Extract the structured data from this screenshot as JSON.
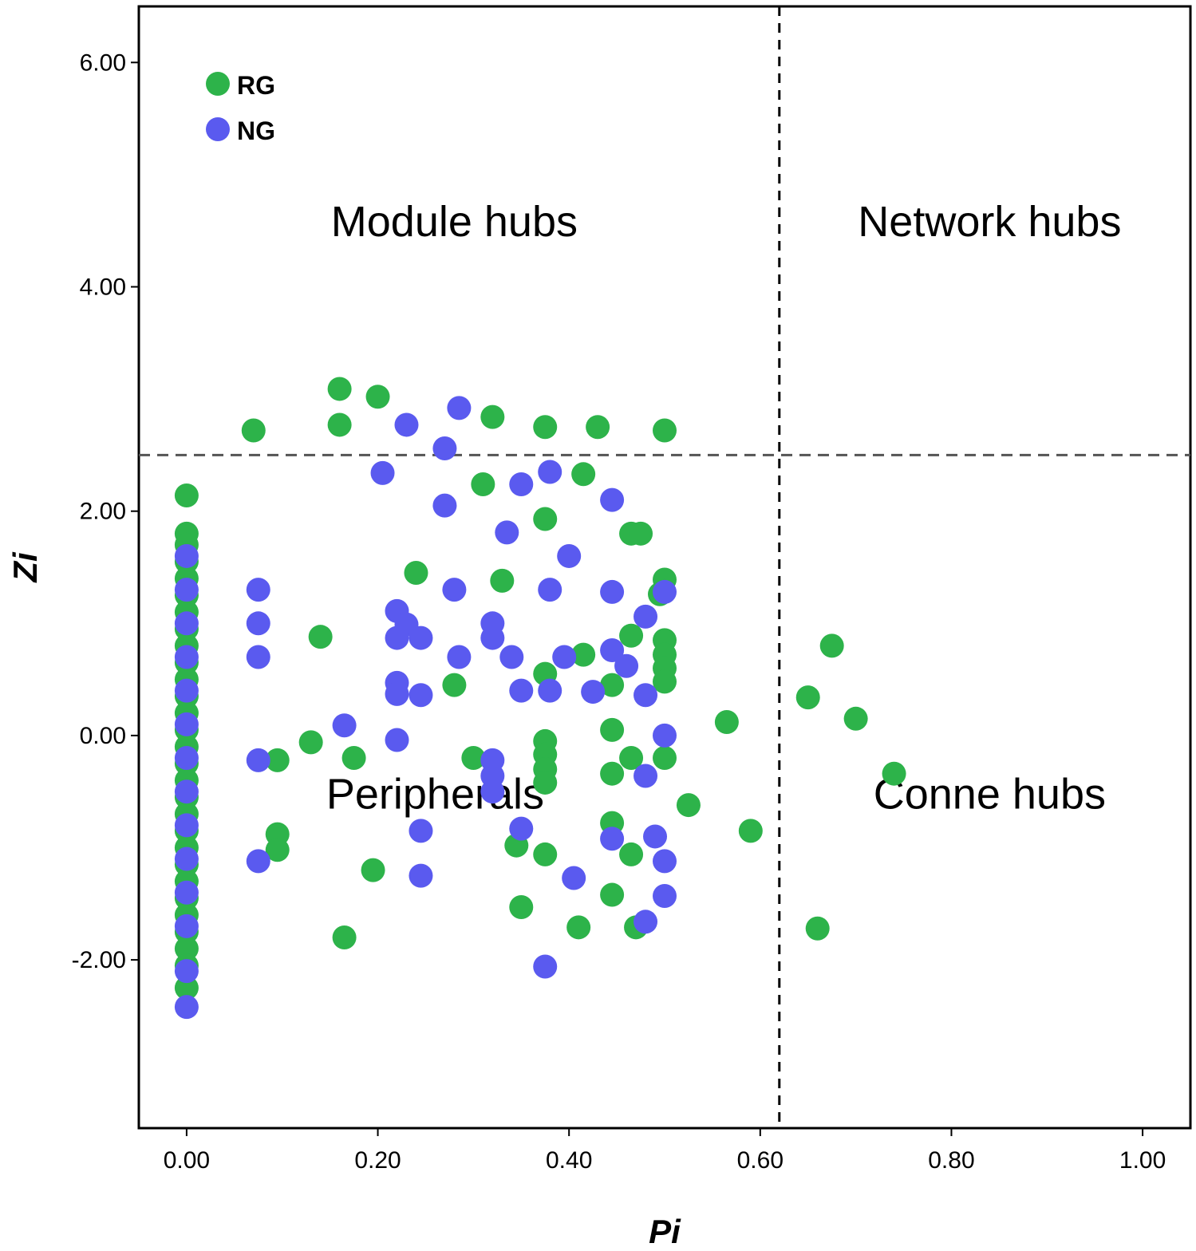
{
  "chart_data": {
    "type": "scatter",
    "xlabel": "Pi",
    "ylabel": "Zi",
    "xlim": [
      -0.05,
      1.05
    ],
    "ylim": [
      -3.5,
      6.5
    ],
    "x_ticks": [
      {
        "value": 0.0,
        "label": "0.00"
      },
      {
        "value": 0.2,
        "label": "0.20"
      },
      {
        "value": 0.4,
        "label": "0.40"
      },
      {
        "value": 0.6,
        "label": "0.60"
      },
      {
        "value": 0.8,
        "label": "0.80"
      },
      {
        "value": 1.0,
        "label": "1.00"
      }
    ],
    "y_ticks": [
      {
        "value": -2.0,
        "label": "-2.00"
      },
      {
        "value": 0.0,
        "label": "0.00"
      },
      {
        "value": 2.0,
        "label": "2.00"
      },
      {
        "value": 4.0,
        "label": "4.00"
      },
      {
        "value": 6.0,
        "label": "6.00"
      }
    ],
    "thresholds": {
      "pi": 0.62,
      "zi": 2.5
    },
    "regions": [
      {
        "label": "Module hubs",
        "x": 0.28,
        "y": 4.45
      },
      {
        "label": "Network hubs",
        "x": 0.84,
        "y": 4.45
      },
      {
        "label": "Peripherals",
        "x": 0.26,
        "y": -0.65
      },
      {
        "label": "Conne hubs",
        "x": 0.84,
        "y": -0.65
      }
    ],
    "grid": false,
    "legend_position": "top-left",
    "series": [
      {
        "name": "RG",
        "color": "#2db34a",
        "points": [
          [
            0.07,
            2.72
          ],
          [
            0.16,
            3.09
          ],
          [
            0.16,
            2.77
          ],
          [
            0.2,
            3.02
          ],
          [
            0.32,
            2.84
          ],
          [
            0.375,
            2.75
          ],
          [
            0.43,
            2.75
          ],
          [
            0.5,
            2.72
          ],
          [
            0.31,
            2.24
          ],
          [
            0.415,
            2.33
          ],
          [
            0.375,
            1.93
          ],
          [
            0.465,
            1.8
          ],
          [
            0.475,
            1.8
          ],
          [
            0.24,
            1.45
          ],
          [
            0.33,
            1.38
          ],
          [
            0.5,
            1.39
          ],
          [
            0.495,
            1.26
          ],
          [
            0.14,
            0.88
          ],
          [
            0.465,
            0.89
          ],
          [
            0.5,
            0.85
          ],
          [
            0.5,
            0.72
          ],
          [
            0.5,
            0.6
          ],
          [
            0.5,
            0.48
          ],
          [
            0.415,
            0.72
          ],
          [
            0.375,
            0.55
          ],
          [
            0.28,
            0.45
          ],
          [
            0.445,
            0.45
          ],
          [
            0.65,
            0.34
          ],
          [
            0.675,
            0.8
          ],
          [
            0.565,
            0.12
          ],
          [
            0.7,
            0.15
          ],
          [
            0.74,
            -0.34
          ],
          [
            0.445,
            0.05
          ],
          [
            0.13,
            -0.06
          ],
          [
            0.095,
            -0.22
          ],
          [
            0.175,
            -0.2
          ],
          [
            0.3,
            -0.2
          ],
          [
            0.375,
            -0.05
          ],
          [
            0.375,
            -0.17
          ],
          [
            0.375,
            -0.3
          ],
          [
            0.375,
            -0.42
          ],
          [
            0.465,
            -0.2
          ],
          [
            0.445,
            -0.34
          ],
          [
            0.5,
            -0.2
          ],
          [
            0.525,
            -0.62
          ],
          [
            0.59,
            -0.85
          ],
          [
            0.445,
            -0.78
          ],
          [
            0.095,
            -0.88
          ],
          [
            0.095,
            -1.02
          ],
          [
            0.345,
            -0.98
          ],
          [
            0.375,
            -1.06
          ],
          [
            0.465,
            -1.06
          ],
          [
            0.195,
            -1.2
          ],
          [
            0.35,
            -1.53
          ],
          [
            0.445,
            -1.42
          ],
          [
            0.41,
            -1.71
          ],
          [
            0.47,
            -1.71
          ],
          [
            0.66,
            -1.72
          ],
          [
            0.165,
            -1.8
          ],
          [
            0.0,
            2.14
          ],
          [
            0.0,
            1.8
          ],
          [
            0.0,
            1.7
          ],
          [
            0.0,
            1.55
          ],
          [
            0.0,
            1.4
          ],
          [
            0.0,
            1.25
          ],
          [
            0.0,
            1.1
          ],
          [
            0.0,
            0.95
          ],
          [
            0.0,
            0.8
          ],
          [
            0.0,
            0.65
          ],
          [
            0.0,
            0.5
          ],
          [
            0.0,
            0.35
          ],
          [
            0.0,
            0.2
          ],
          [
            0.0,
            0.05
          ],
          [
            0.0,
            -0.1
          ],
          [
            0.0,
            -0.25
          ],
          [
            0.0,
            -0.4
          ],
          [
            0.0,
            -0.55
          ],
          [
            0.0,
            -0.7
          ],
          [
            0.0,
            -0.85
          ],
          [
            0.0,
            -1.0
          ],
          [
            0.0,
            -1.15
          ],
          [
            0.0,
            -1.3
          ],
          [
            0.0,
            -1.45
          ],
          [
            0.0,
            -1.6
          ],
          [
            0.0,
            -1.75
          ],
          [
            0.0,
            -1.9
          ],
          [
            0.0,
            -2.05
          ],
          [
            0.0,
            -2.25
          ]
        ]
      },
      {
        "name": "NG",
        "color": "#5a5aef",
        "points": [
          [
            0.285,
            2.92
          ],
          [
            0.23,
            2.77
          ],
          [
            0.27,
            2.56
          ],
          [
            0.205,
            2.34
          ],
          [
            0.38,
            2.35
          ],
          [
            0.35,
            2.24
          ],
          [
            0.445,
            2.1
          ],
          [
            0.27,
            2.05
          ],
          [
            0.335,
            1.81
          ],
          [
            0.4,
            1.6
          ],
          [
            0.075,
            1.3
          ],
          [
            0.28,
            1.3
          ],
          [
            0.38,
            1.3
          ],
          [
            0.445,
            1.28
          ],
          [
            0.5,
            1.28
          ],
          [
            0.22,
            1.11
          ],
          [
            0.23,
            0.99
          ],
          [
            0.32,
            1.0
          ],
          [
            0.48,
            1.06
          ],
          [
            0.075,
            1.0
          ],
          [
            0.22,
            0.87
          ],
          [
            0.245,
            0.87
          ],
          [
            0.32,
            0.87
          ],
          [
            0.445,
            0.76
          ],
          [
            0.075,
            0.7
          ],
          [
            0.285,
            0.7
          ],
          [
            0.34,
            0.7
          ],
          [
            0.395,
            0.7
          ],
          [
            0.46,
            0.62
          ],
          [
            0.22,
            0.47
          ],
          [
            0.22,
            0.37
          ],
          [
            0.245,
            0.36
          ],
          [
            0.35,
            0.4
          ],
          [
            0.38,
            0.4
          ],
          [
            0.425,
            0.39
          ],
          [
            0.48,
            0.36
          ],
          [
            0.165,
            0.09
          ],
          [
            0.5,
            0.0
          ],
          [
            0.22,
            -0.04
          ],
          [
            0.075,
            -0.22
          ],
          [
            0.32,
            -0.22
          ],
          [
            0.32,
            -0.36
          ],
          [
            0.32,
            -0.5
          ],
          [
            0.48,
            -0.36
          ],
          [
            0.35,
            -0.83
          ],
          [
            0.245,
            -0.85
          ],
          [
            0.445,
            -0.92
          ],
          [
            0.49,
            -0.9
          ],
          [
            0.075,
            -1.12
          ],
          [
            0.5,
            -1.12
          ],
          [
            0.245,
            -1.25
          ],
          [
            0.405,
            -1.27
          ],
          [
            0.5,
            -1.43
          ],
          [
            0.48,
            -1.66
          ],
          [
            0.375,
            -2.06
          ],
          [
            0.0,
            1.6
          ],
          [
            0.0,
            1.3
          ],
          [
            0.0,
            1.0
          ],
          [
            0.0,
            0.7
          ],
          [
            0.0,
            0.4
          ],
          [
            0.0,
            0.1
          ],
          [
            0.0,
            -0.2
          ],
          [
            0.0,
            -0.5
          ],
          [
            0.0,
            -0.8
          ],
          [
            0.0,
            -1.1
          ],
          [
            0.0,
            -1.4
          ],
          [
            0.0,
            -1.7
          ],
          [
            0.0,
            -2.1
          ],
          [
            0.0,
            -2.42
          ]
        ]
      }
    ]
  }
}
